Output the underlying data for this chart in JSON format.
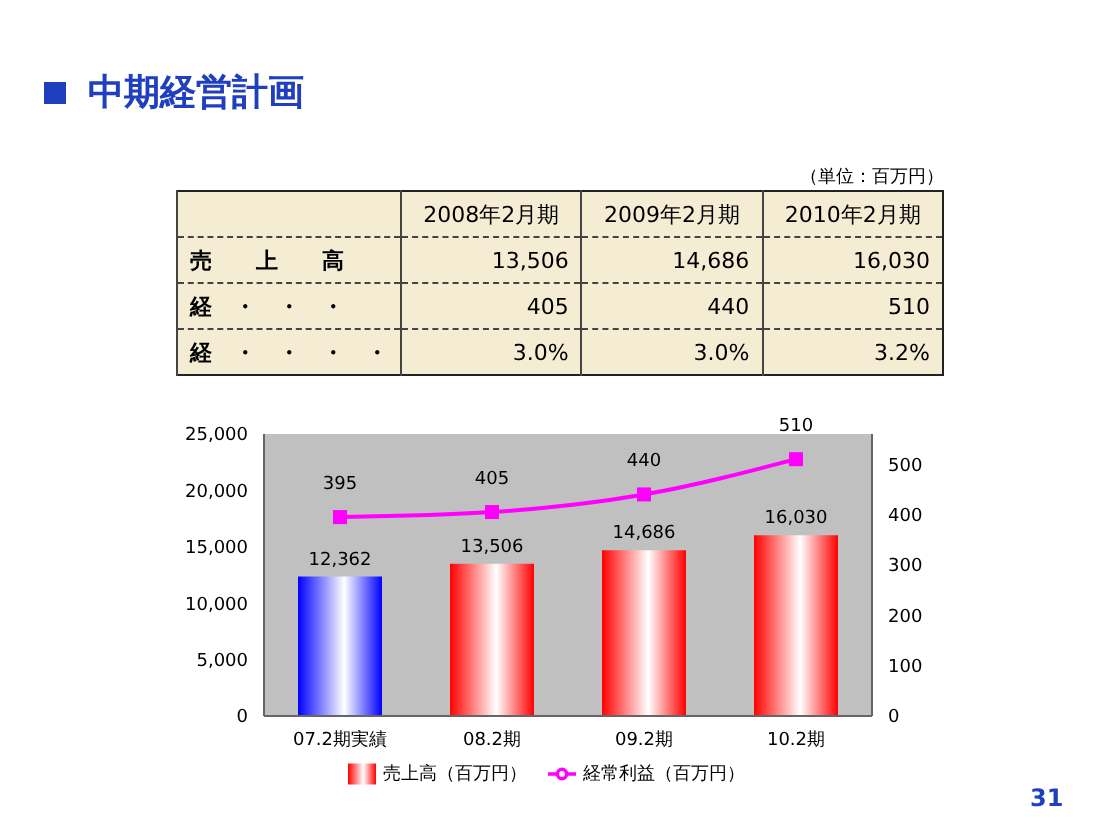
{
  "chart_data": [
    {
      "type": "other",
      "title": "中期経営計画",
      "annotations": [
        "（単位：百万円）",
        "2008年2月期",
        "2009年2月期",
        "2010年2月期",
        "売　　上　　高",
        "13,506",
        "14,686",
        "16,030",
        "経　・　・　・",
        "405",
        "440",
        "510",
        "経　・　・　・　・",
        "3.0%",
        "3.0%",
        "3.2%"
      ]
    },
    {
      "type": "bar",
      "categories": [
        "07.2期実績",
        "08.2期",
        "09.2期",
        "10.2期"
      ],
      "series": [
        {
          "type": "bar",
          "name": "売上高（百万円）",
          "color": "#ff0000",
          "colors": [
            "#0000ff",
            "#ff0000",
            "#ff0000",
            "#ff0000"
          ],
          "values": [
            12362,
            13506,
            14686,
            16030
          ],
          "value_labels": [
            "12,362",
            "13,506",
            "14,686",
            "16,030"
          ]
        },
        {
          "type": "line",
          "name": "経常利益（百万円）",
          "color": "#ff00ff",
          "axis": "y2",
          "marker": "square",
          "values": [
            395,
            405,
            440,
            510
          ],
          "value_labels": [
            "395",
            "405",
            "440",
            "510"
          ]
        }
      ],
      "ylim": [
        0,
        25000
      ],
      "yticks": [
        0,
        {
          "value": 5000,
          "label": "5,000"
        },
        {
          "value": 10000,
          "label": "10,000"
        },
        {
          "value": 15000,
          "label": "15,000"
        },
        {
          "value": 20000,
          "label": "20,000"
        },
        {
          "value": 25000,
          "label": "25,000"
        }
      ],
      "y2lim": [
        0,
        560
      ],
      "y2ticks": [
        0,
        100,
        200,
        300,
        400,
        500
      ],
      "grid": false,
      "legend": "bottom",
      "annotations": [
        "31"
      ]
    }
  ]
}
